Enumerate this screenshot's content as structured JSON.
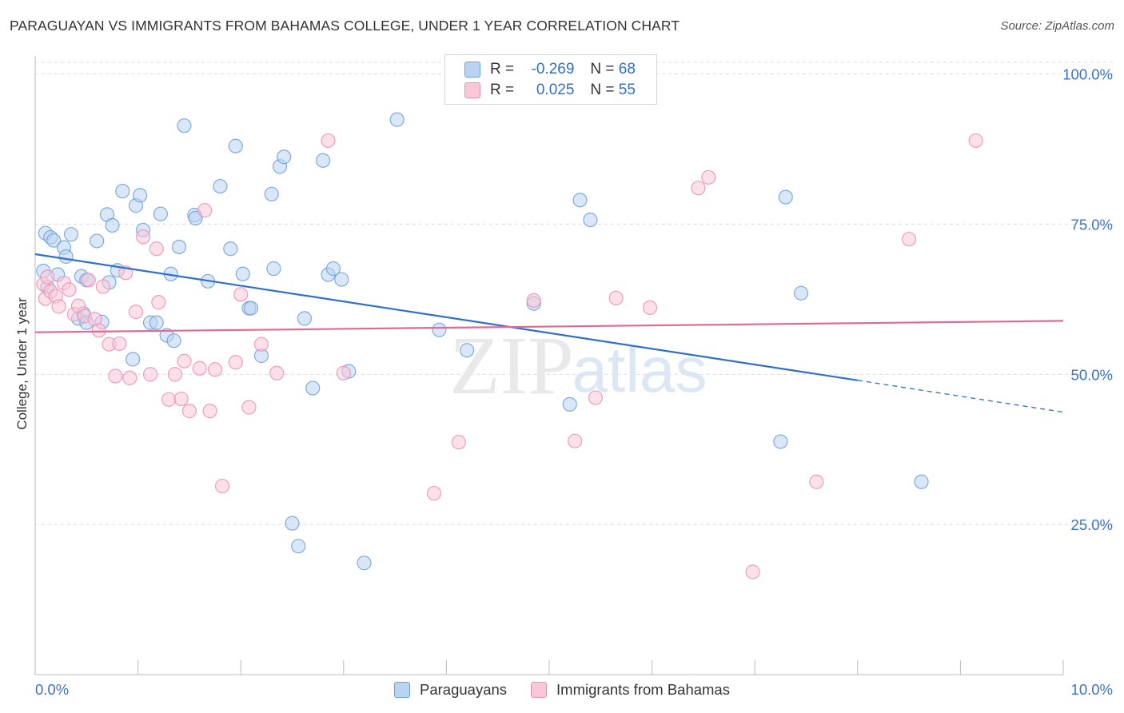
{
  "title": "PARAGUAYAN VS IMMIGRANTS FROM BAHAMAS COLLEGE, UNDER 1 YEAR CORRELATION CHART",
  "source": "Source: ZipAtlas.com",
  "watermark": {
    "zip": "ZIP",
    "atlas": "atlas"
  },
  "legend": {
    "series1": {
      "r_label": "R =",
      "r_value": "-0.269",
      "n_label": "N =",
      "n_value": "68"
    },
    "series2": {
      "r_label": "R =",
      "r_value": "0.025",
      "n_label": "N =",
      "n_value": "55"
    }
  },
  "chart_data": {
    "type": "scatter",
    "title": "PARAGUAYAN VS IMMIGRANTS FROM BAHAMAS COLLEGE, UNDER 1 YEAR CORRELATION CHART",
    "xlabel": "",
    "ylabel": "College, Under 1 year",
    "xlim": [
      0,
      10
    ],
    "ylim": [
      0,
      103
    ],
    "x_tick_labels": [
      "0.0%",
      "10.0%"
    ],
    "y_ticks": [
      25,
      50,
      75,
      100
    ],
    "y_tick_labels": [
      "25.0%",
      "50.0%",
      "75.0%",
      "100.0%"
    ],
    "grid": true,
    "legend_position": "top-center",
    "series": [
      {
        "name": "Paraguayans",
        "color": "#6d9fdb",
        "fill": "#b9d3f3",
        "trend": {
          "x0": 0,
          "y0": 70.0,
          "x1": 8,
          "y1": 49.0,
          "dash_to_x": 10,
          "dash_to_y": 43.7
        },
        "points": [
          [
            0.08,
            67.2
          ],
          [
            0.1,
            73.5
          ],
          [
            0.15,
            72.8
          ],
          [
            0.18,
            72.3
          ],
          [
            0.22,
            66.6
          ],
          [
            0.28,
            71.1
          ],
          [
            0.3,
            69.6
          ],
          [
            0.35,
            73.3
          ],
          [
            0.42,
            59.3
          ],
          [
            0.45,
            66.3
          ],
          [
            0.5,
            65.7
          ],
          [
            0.47,
            60.1
          ],
          [
            0.5,
            58.6
          ],
          [
            0.6,
            72.2
          ],
          [
            0.65,
            58.7
          ],
          [
            0.7,
            76.6
          ],
          [
            0.75,
            74.8
          ],
          [
            0.85,
            80.5
          ],
          [
            0.8,
            67.3
          ],
          [
            0.72,
            65.3
          ],
          [
            0.95,
            52.5
          ],
          [
            0.98,
            78.1
          ],
          [
            1.02,
            79.8
          ],
          [
            1.05,
            74.0
          ],
          [
            1.12,
            58.6
          ],
          [
            1.18,
            58.6
          ],
          [
            1.22,
            76.7
          ],
          [
            1.28,
            56.5
          ],
          [
            1.32,
            66.7
          ],
          [
            1.35,
            55.6
          ],
          [
            1.4,
            71.2
          ],
          [
            1.45,
            91.4
          ],
          [
            1.55,
            76.5
          ],
          [
            1.56,
            76.0
          ],
          [
            1.68,
            65.5
          ],
          [
            1.8,
            81.3
          ],
          [
            1.9,
            70.9
          ],
          [
            1.95,
            88.0
          ],
          [
            2.02,
            66.7
          ],
          [
            2.08,
            61.0
          ],
          [
            2.1,
            61.0
          ],
          [
            2.2,
            53.1
          ],
          [
            2.3,
            80.0
          ],
          [
            2.32,
            67.6
          ],
          [
            2.38,
            84.6
          ],
          [
            2.42,
            86.2
          ],
          [
            2.5,
            25.2
          ],
          [
            2.56,
            21.4
          ],
          [
            2.62,
            59.3
          ],
          [
            2.7,
            47.7
          ],
          [
            2.8,
            85.6
          ],
          [
            2.85,
            66.6
          ],
          [
            2.9,
            67.6
          ],
          [
            2.98,
            65.8
          ],
          [
            3.05,
            50.5
          ],
          [
            3.2,
            18.6
          ],
          [
            3.52,
            92.4
          ],
          [
            3.93,
            57.4
          ],
          [
            4.2,
            54.0
          ],
          [
            4.85,
            61.8
          ],
          [
            5.2,
            45.0
          ],
          [
            5.3,
            79.0
          ],
          [
            5.4,
            75.7
          ],
          [
            7.25,
            38.8
          ],
          [
            7.3,
            79.5
          ],
          [
            7.45,
            63.5
          ],
          [
            8.62,
            32.1
          ],
          [
            0.12,
            64.5
          ]
        ]
      },
      {
        "name": "Immigrants from Bahamas",
        "color": "#eb8fb0",
        "fill": "#f9c8d8",
        "trend": {
          "x0": 0,
          "y0": 57.0,
          "x1": 10,
          "y1": 58.9
        },
        "points": [
          [
            0.08,
            65.0
          ],
          [
            0.1,
            62.6
          ],
          [
            0.12,
            66.2
          ],
          [
            0.15,
            63.8
          ],
          [
            0.2,
            63.0
          ],
          [
            0.23,
            61.3
          ],
          [
            0.28,
            65.2
          ],
          [
            0.33,
            64.1
          ],
          [
            0.38,
            60.0
          ],
          [
            0.42,
            61.4
          ],
          [
            0.48,
            59.7
          ],
          [
            0.52,
            65.7
          ],
          [
            0.58,
            59.2
          ],
          [
            0.62,
            57.3
          ],
          [
            0.66,
            64.6
          ],
          [
            0.72,
            55.0
          ],
          [
            0.78,
            49.7
          ],
          [
            0.82,
            55.1
          ],
          [
            0.88,
            66.9
          ],
          [
            0.92,
            49.4
          ],
          [
            0.98,
            60.4
          ],
          [
            1.05,
            72.9
          ],
          [
            1.12,
            50.0
          ],
          [
            1.18,
            70.9
          ],
          [
            1.2,
            62.0
          ],
          [
            1.3,
            45.8
          ],
          [
            1.36,
            50.0
          ],
          [
            1.42,
            45.9
          ],
          [
            1.45,
            52.2
          ],
          [
            1.5,
            43.9
          ],
          [
            1.6,
            51.0
          ],
          [
            1.65,
            77.3
          ],
          [
            1.7,
            43.9
          ],
          [
            1.75,
            50.8
          ],
          [
            1.82,
            31.4
          ],
          [
            1.95,
            52.0
          ],
          [
            2.0,
            63.3
          ],
          [
            2.08,
            44.5
          ],
          [
            2.2,
            55.0
          ],
          [
            2.35,
            50.2
          ],
          [
            2.85,
            88.9
          ],
          [
            3.0,
            50.2
          ],
          [
            3.88,
            30.2
          ],
          [
            4.12,
            38.7
          ],
          [
            4.85,
            62.3
          ],
          [
            5.25,
            38.9
          ],
          [
            5.45,
            46.1
          ],
          [
            5.65,
            62.7
          ],
          [
            5.98,
            61.1
          ],
          [
            6.45,
            81.0
          ],
          [
            6.55,
            82.8
          ],
          [
            6.98,
            17.1
          ],
          [
            7.6,
            32.1
          ],
          [
            8.5,
            72.5
          ],
          [
            9.15,
            88.9
          ]
        ]
      }
    ]
  },
  "bottom_legend": {
    "item1": "Paraguayans",
    "item2": "Immigrants from Bahamas"
  }
}
